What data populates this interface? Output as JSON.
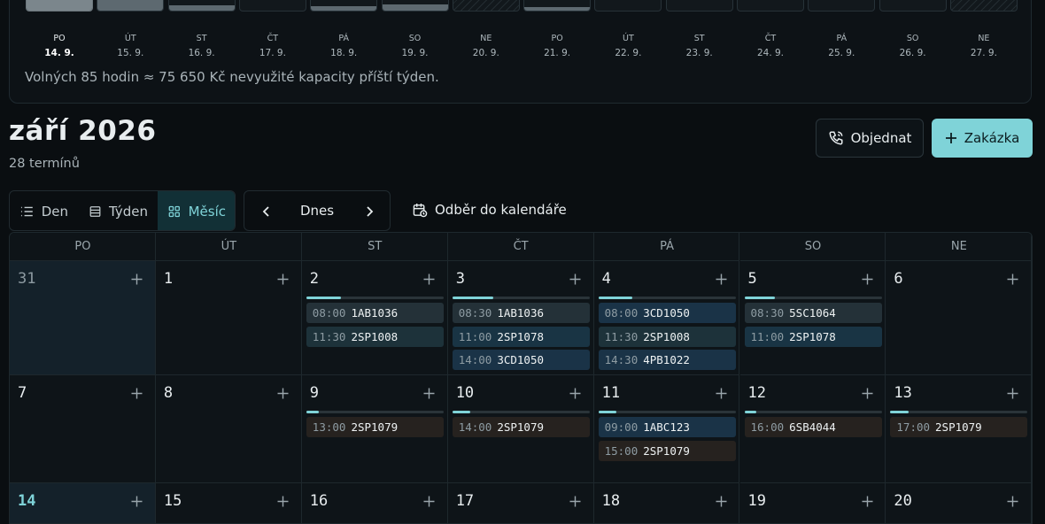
{
  "capacity": {
    "days": [
      {
        "weekday": "PO",
        "date": "14. 9."
      },
      {
        "weekday": "ÚT",
        "date": "15. 9."
      },
      {
        "weekday": "ST",
        "date": "16. 9."
      },
      {
        "weekday": "ČT",
        "date": "17. 9."
      },
      {
        "weekday": "PÁ",
        "date": "18. 9."
      },
      {
        "weekday": "SO",
        "date": "19. 9."
      },
      {
        "weekday": "NE",
        "date": "20. 9."
      },
      {
        "weekday": "PO",
        "date": "21. 9."
      },
      {
        "weekday": "ÚT",
        "date": "22. 9."
      },
      {
        "weekday": "ST",
        "date": "23. 9."
      },
      {
        "weekday": "ČT",
        "date": "24. 9."
      },
      {
        "weekday": "PÁ",
        "date": "25. 9."
      },
      {
        "weekday": "SO",
        "date": "26. 9."
      },
      {
        "weekday": "NE",
        "date": "27. 9."
      }
    ],
    "summary": "Volných 85 hodin ≈ 75 650 Kč nevyužité kapacity příští týden."
  },
  "header": {
    "title": "září 2026",
    "subtitle": "28 termínů"
  },
  "actions": {
    "order": "Objednat",
    "new": "Zakázka"
  },
  "toolbar": {
    "views": [
      "Den",
      "Týden",
      "Měsíc"
    ],
    "today": "Dnes",
    "subscribe": "Odběr do kalendáře"
  },
  "calendar": {
    "weekdays": [
      "PO",
      "ÚT",
      "ST",
      "ČT",
      "PÁ",
      "SO",
      "NE"
    ],
    "weeks": [
      [
        {
          "day": "31",
          "events": []
        },
        {
          "day": "1",
          "events": []
        },
        {
          "day": "2",
          "events": [
            {
              "time": "08:00",
              "code": "1AB1036"
            },
            {
              "time": "11:30",
              "code": "2SP1008"
            }
          ]
        },
        {
          "day": "3",
          "events": [
            {
              "time": "08:30",
              "code": "1AB1036"
            },
            {
              "time": "11:00",
              "code": "2SP1078"
            },
            {
              "time": "14:00",
              "code": "3CD1050"
            }
          ]
        },
        {
          "day": "4",
          "events": [
            {
              "time": "08:00",
              "code": "3CD1050"
            },
            {
              "time": "11:30",
              "code": "2SP1008"
            },
            {
              "time": "14:30",
              "code": "4PB1022"
            }
          ]
        },
        {
          "day": "5",
          "events": [
            {
              "time": "08:30",
              "code": "5SC1064"
            },
            {
              "time": "11:00",
              "code": "2SP1078"
            }
          ]
        },
        {
          "day": "6",
          "events": []
        }
      ],
      [
        {
          "day": "7",
          "events": []
        },
        {
          "day": "8",
          "events": []
        },
        {
          "day": "9",
          "events": [
            {
              "time": "13:00",
              "code": "2SP1079"
            }
          ]
        },
        {
          "day": "10",
          "events": [
            {
              "time": "14:00",
              "code": "2SP1079"
            }
          ]
        },
        {
          "day": "11",
          "events": [
            {
              "time": "09:00",
              "code": "1ABC123"
            },
            {
              "time": "15:00",
              "code": "2SP1079"
            }
          ]
        },
        {
          "day": "12",
          "events": [
            {
              "time": "16:00",
              "code": "6SB4044"
            }
          ]
        },
        {
          "day": "13",
          "events": [
            {
              "time": "17:00",
              "code": "2SP1079"
            }
          ]
        }
      ],
      [
        {
          "day": "14",
          "events": []
        },
        {
          "day": "15",
          "events": []
        },
        {
          "day": "16",
          "events": []
        },
        {
          "day": "17",
          "events": []
        },
        {
          "day": "18",
          "events": []
        },
        {
          "day": "19",
          "events": []
        },
        {
          "day": "20",
          "events": []
        }
      ]
    ]
  }
}
